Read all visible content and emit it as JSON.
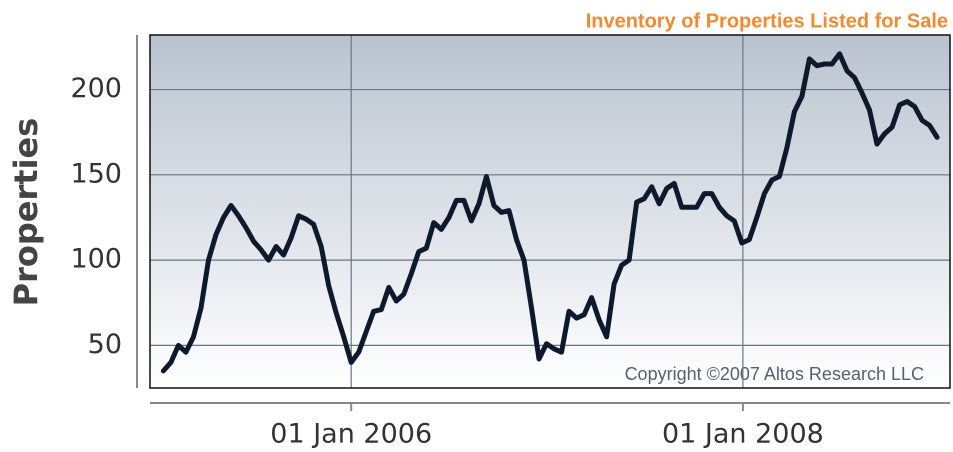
{
  "chart_data": {
    "type": "line",
    "title": "Inventory of Properties Listed for Sale",
    "ylabel": "Properties",
    "annotation": "Copyright ©2007 Altos Research LLC",
    "x": [
      "2005-01-16",
      "2005-01-30",
      "2005-02-13",
      "2005-02-27",
      "2005-03-13",
      "2005-03-27",
      "2005-04-10",
      "2005-04-24",
      "2005-05-08",
      "2005-05-22",
      "2005-06-05",
      "2005-06-19",
      "2005-07-03",
      "2005-07-17",
      "2005-07-31",
      "2005-08-14",
      "2005-08-28",
      "2005-09-11",
      "2005-09-25",
      "2005-10-09",
      "2005-10-23",
      "2005-11-06",
      "2005-11-20",
      "2005-12-04",
      "2005-12-18",
      "2006-01-01",
      "2006-01-15",
      "2006-01-29",
      "2006-02-12",
      "2006-02-26",
      "2006-03-12",
      "2006-03-26",
      "2006-04-09",
      "2006-04-23",
      "2006-05-07",
      "2006-05-21",
      "2006-06-04",
      "2006-06-18",
      "2006-07-02",
      "2006-07-16",
      "2006-07-30",
      "2006-08-13",
      "2006-08-27",
      "2006-09-10",
      "2006-09-24",
      "2006-10-08",
      "2006-10-22",
      "2006-11-05",
      "2006-11-19",
      "2006-12-03",
      "2006-12-17",
      "2006-12-31",
      "2007-01-14",
      "2007-01-28",
      "2007-02-11",
      "2007-02-25",
      "2007-03-11",
      "2007-03-25",
      "2007-04-08",
      "2007-04-22",
      "2007-05-06",
      "2007-05-20",
      "2007-06-03",
      "2007-06-17",
      "2007-07-01",
      "2007-07-15",
      "2007-07-29",
      "2007-08-12",
      "2007-08-26",
      "2007-09-09",
      "2007-09-23",
      "2007-10-07",
      "2007-10-21",
      "2007-11-04",
      "2007-11-18",
      "2007-12-02",
      "2007-12-16",
      "2007-12-30",
      "2008-01-13",
      "2008-01-27",
      "2008-02-10",
      "2008-02-24",
      "2008-03-09",
      "2008-03-23",
      "2008-04-06",
      "2008-04-20",
      "2008-05-04",
      "2008-05-18",
      "2008-06-01",
      "2008-06-15",
      "2008-06-29",
      "2008-07-13",
      "2008-07-27",
      "2008-08-10",
      "2008-08-24",
      "2008-09-07",
      "2008-09-21",
      "2008-10-05",
      "2008-10-19",
      "2008-11-02",
      "2008-11-16",
      "2008-11-30",
      "2008-12-14",
      "2008-12-28"
    ],
    "series": [
      {
        "color": "#0d1a2e",
        "values": [
          35,
          40,
          50,
          46,
          55,
          72,
          100,
          115,
          125,
          132,
          126,
          119,
          111,
          106,
          100,
          108,
          103,
          113,
          126,
          124,
          121,
          108,
          85,
          69,
          55,
          40,
          46,
          58,
          70,
          71,
          84,
          76,
          80,
          92,
          105,
          107,
          122,
          118,
          125,
          135,
          135,
          123,
          133,
          149,
          132,
          128,
          129,
          112,
          100,
          72,
          42,
          51,
          48,
          46,
          70,
          66,
          68,
          78,
          65,
          55,
          86,
          97,
          100,
          134,
          136,
          143,
          133,
          142,
          145,
          131,
          131,
          131,
          139,
          139,
          131,
          126,
          123,
          110,
          112,
          125,
          139,
          147,
          149,
          166,
          187,
          196,
          218,
          214,
          215,
          215,
          221,
          211,
          207,
          198,
          188,
          168,
          174,
          178,
          191,
          193,
          190,
          182,
          179,
          172
        ]
      }
    ],
    "xlim": [
      "2004-12-22",
      "2009-01-21"
    ],
    "xticks": [
      {
        "value": "2006-01-01",
        "label": "01 Jan 2006"
      },
      {
        "value": "2008-01-01",
        "label": "01 Jan 2008"
      }
    ],
    "ylim": [
      25,
      232
    ],
    "yticks": [
      50,
      100,
      150,
      200
    ],
    "grid": true
  }
}
